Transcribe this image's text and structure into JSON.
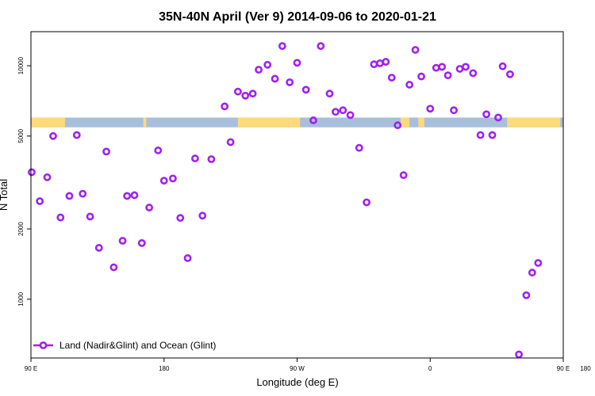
{
  "chart_data": {
    "type": "scatter",
    "title": "35N-40N April (Ver 9)   2014-09-06 to 2020-01-21",
    "xlabel": "Longitude (deg E)",
    "ylabel": "N Total",
    "x_scale": "longitude",
    "y_scale": "log",
    "xlim": [
      90,
      450
    ],
    "ylim": [
      560,
      14000
    ],
    "x_ticks": [
      {
        "value": 90,
        "label": "90 E"
      },
      {
        "value": 180,
        "label": "180"
      },
      {
        "value": 270,
        "label": "90 W"
      },
      {
        "value": 360,
        "label": "0"
      },
      {
        "value": 450,
        "label": "90 E"
      },
      {
        "value": 540,
        "label": "180"
      }
    ],
    "y_ticks": [
      {
        "value": 1000,
        "label": "1000"
      },
      {
        "value": 2000,
        "label": "2000"
      },
      {
        "value": 5000,
        "label": "5000"
      },
      {
        "value": 10000,
        "label": "10000"
      }
    ],
    "legend": {
      "position": "bottom-left",
      "entries": [
        {
          "label": "Land (Nadir&Glint) and Ocean (Glint)",
          "color": "#a020f0"
        }
      ]
    },
    "land_ocean_band": {
      "land_color": "#ffd97a",
      "ocean_color": "#a8bfdc",
      "y_range": [
        5450,
        6000
      ]
    },
    "series": [
      {
        "name": "Land (Nadir&Glint) and Ocean (Glint)",
        "color": "#a020f0",
        "points": [
          [
            90.5,
            3500
          ],
          [
            96,
            2630
          ],
          [
            101,
            3330
          ],
          [
            105,
            5000
          ],
          [
            110,
            2240
          ],
          [
            116,
            2770
          ],
          [
            121,
            5050
          ],
          [
            125,
            2830
          ],
          [
            130,
            2260
          ],
          [
            136,
            1660
          ],
          [
            141,
            4290
          ],
          [
            146,
            1370
          ],
          [
            152,
            1780
          ],
          [
            155,
            2770
          ],
          [
            160,
            2790
          ],
          [
            165,
            1740
          ],
          [
            170,
            2470
          ],
          [
            176,
            4340
          ],
          [
            180,
            3220
          ],
          [
            186,
            3290
          ],
          [
            191,
            2230
          ],
          [
            196,
            1500
          ],
          [
            201,
            4010
          ],
          [
            206,
            2280
          ],
          [
            212,
            3980
          ],
          [
            221,
            6700
          ],
          [
            225,
            4710
          ],
          [
            230,
            7750
          ],
          [
            235,
            7450
          ],
          [
            240,
            7600
          ],
          [
            244,
            9620
          ],
          [
            250,
            10100
          ],
          [
            255,
            8800
          ],
          [
            260,
            12150
          ],
          [
            265,
            8500
          ],
          [
            270,
            10300
          ],
          [
            276,
            7900
          ],
          [
            281,
            5840
          ],
          [
            286,
            12150
          ],
          [
            292,
            7600
          ],
          [
            296,
            6350
          ],
          [
            301,
            6450
          ],
          [
            306,
            6150
          ],
          [
            312,
            4450
          ],
          [
            317,
            2600
          ],
          [
            322,
            10150
          ],
          [
            326,
            10250
          ],
          [
            330,
            10400
          ],
          [
            334,
            8900
          ],
          [
            338,
            5560
          ],
          [
            342,
            3400
          ],
          [
            346,
            8300
          ],
          [
            350,
            11700
          ],
          [
            354,
            9000
          ],
          [
            360,
            6550
          ],
          [
            364,
            9800
          ],
          [
            368,
            9900
          ],
          [
            372,
            9100
          ],
          [
            376,
            6450
          ],
          [
            380,
            9700
          ],
          [
            384,
            9900
          ],
          [
            389,
            9300
          ],
          [
            394,
            5050
          ],
          [
            398,
            6200
          ],
          [
            402,
            5050
          ],
          [
            406,
            6000
          ],
          [
            409,
            9950
          ],
          [
            414,
            9200
          ],
          [
            420,
            580
          ],
          [
            425,
            1040
          ],
          [
            429,
            1300
          ],
          [
            433,
            1430
          ]
        ]
      }
    ]
  }
}
